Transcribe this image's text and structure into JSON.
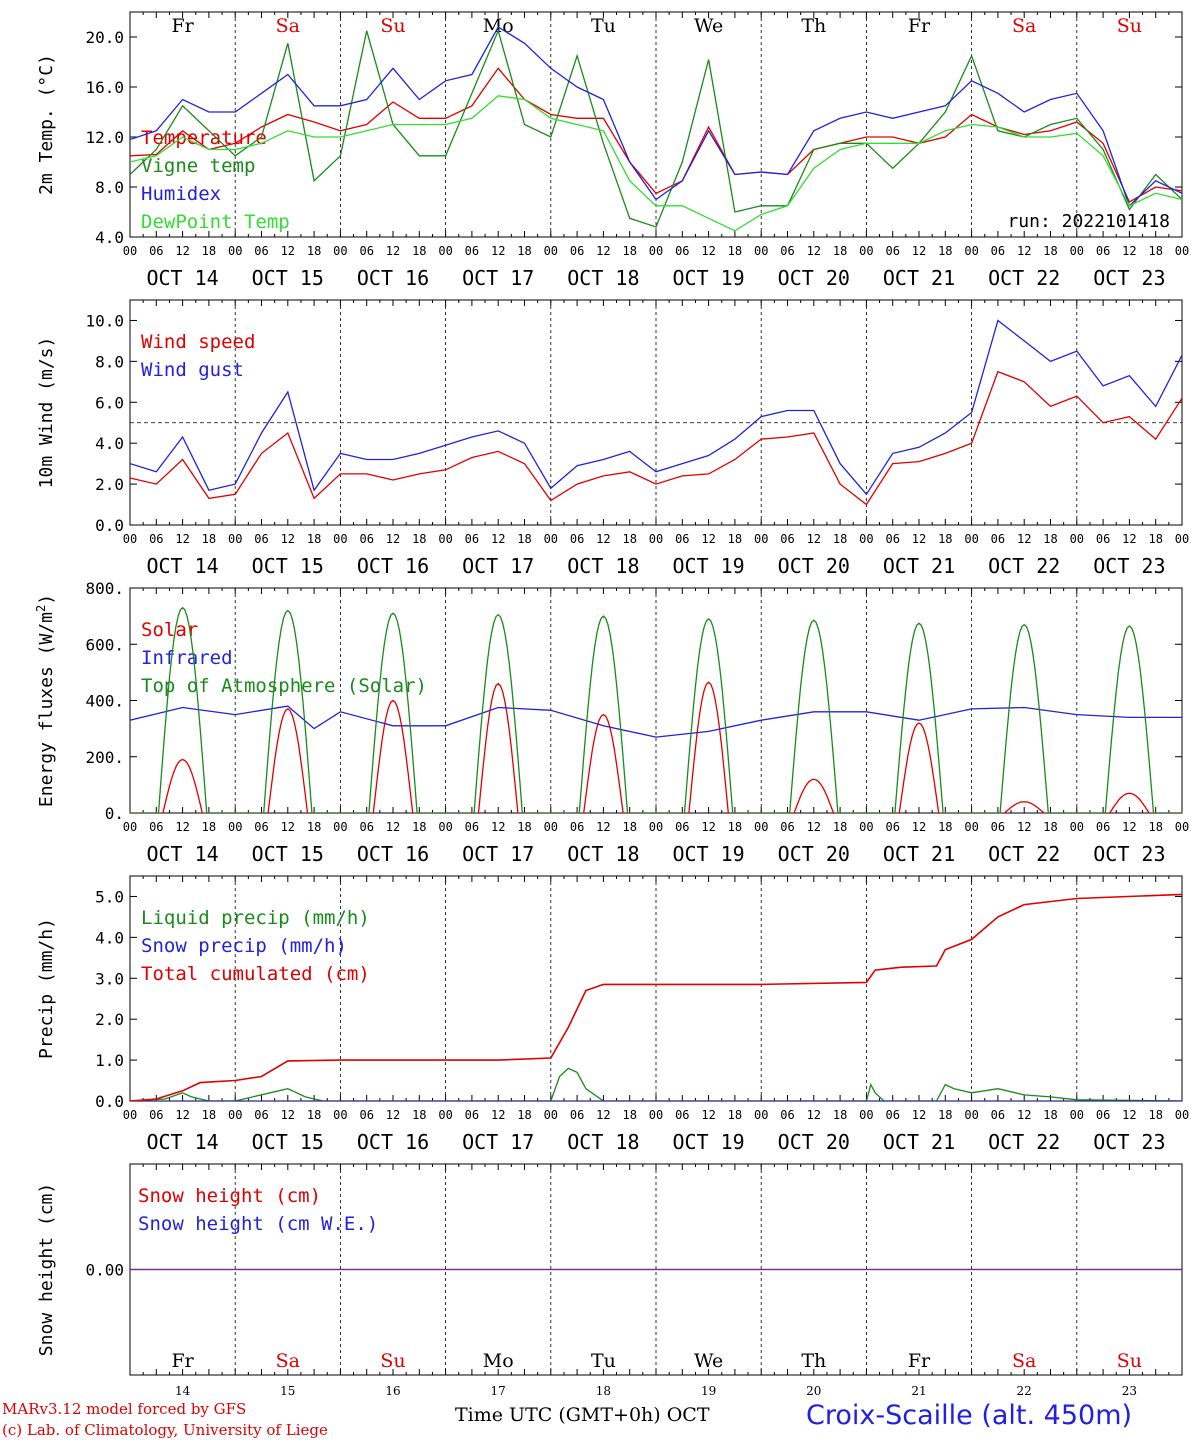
{
  "days": [
    "Fr",
    "Sa",
    "Su",
    "Mo",
    "Tu",
    "We",
    "Th",
    "Fr",
    "Sa",
    "Su"
  ],
  "dates": [
    "OCT 14",
    "OCT 15",
    "OCT 16",
    "OCT 17",
    "OCT 18",
    "OCT 19",
    "OCT 20",
    "OCT 21",
    "OCT 22",
    "OCT 23"
  ],
  "hour_ticks": [
    "00",
    "06",
    "12",
    "18"
  ],
  "bottom_day_numbers": [
    "14",
    "15",
    "16",
    "17",
    "18",
    "19",
    "20",
    "21",
    "22",
    "23"
  ],
  "colors": {
    "red": "#e00000",
    "green": "#1a8a1a",
    "lightgreen": "#33dd33",
    "blue": "#2222dd",
    "weekend": "#e00000",
    "purple": "#7030a0"
  },
  "footer": {
    "model": "MARv3.12 model forced by GFS",
    "lab": "(c) Lab. of Climatology, University of Liege",
    "time_axis": "Time UTC (GMT+0h) OCT",
    "station": "Croix-Scaille (alt. 450m)"
  },
  "chart_data": [
    {
      "type": "line",
      "ylabel": "2m Temp. (°C)",
      "ylim": [
        4.0,
        22.0
      ],
      "yticks": [
        "4.0",
        "8.0",
        "12.0",
        "16.0",
        "20.0"
      ],
      "annotation": "run: 2022101418",
      "x_unit": "hours since 00 UTC Oct 14",
      "series": [
        {
          "name": "Temperature",
          "color": "red",
          "x": [
            0,
            6,
            12,
            18,
            24,
            30,
            36,
            42,
            48,
            54,
            60,
            66,
            72,
            78,
            84,
            90,
            96,
            102,
            108,
            114,
            120,
            126,
            132,
            138,
            144,
            150,
            156,
            162,
            168,
            174,
            180,
            186,
            192,
            198,
            204,
            210,
            216,
            222,
            228,
            234,
            240
          ],
          "y": [
            10.5,
            10.6,
            12.5,
            11.0,
            11.5,
            12.8,
            13.8,
            13.2,
            12.5,
            13.0,
            14.8,
            13.5,
            13.5,
            14.5,
            17.5,
            15.0,
            13.8,
            13.5,
            13.5,
            10.0,
            7.5,
            8.5,
            12.8,
            9.0,
            9.2,
            9.0,
            11.0,
            11.5,
            12.0,
            12.0,
            11.5,
            12.0,
            13.8,
            12.8,
            12.2,
            12.5,
            13.2,
            11.5,
            6.8,
            8.0,
            7.7
          ]
        },
        {
          "name": "Vigne temp",
          "color": "green",
          "x": [
            0,
            6,
            12,
            18,
            24,
            30,
            36,
            42,
            48,
            54,
            60,
            66,
            72,
            78,
            84,
            90,
            96,
            102,
            108,
            114,
            120,
            126,
            132,
            138,
            144,
            150,
            156,
            162,
            168,
            174,
            180,
            186,
            192,
            198,
            204,
            210,
            216,
            222,
            228,
            234,
            240
          ],
          "y": [
            9.0,
            11.0,
            14.5,
            12.5,
            10.5,
            12.0,
            19.5,
            8.5,
            10.5,
            20.5,
            13.0,
            10.5,
            10.5,
            15.5,
            20.5,
            13.0,
            12.0,
            18.5,
            11.5,
            5.5,
            4.8,
            10.0,
            18.2,
            6.0,
            6.5,
            6.5,
            11.0,
            11.5,
            11.5,
            9.5,
            11.5,
            14.0,
            18.5,
            12.5,
            12.0,
            13.0,
            13.5,
            11.0,
            6.2,
            9.0,
            7.0
          ]
        },
        {
          "name": "Humidex",
          "color": "blue",
          "x": [
            0,
            6,
            12,
            18,
            24,
            30,
            36,
            42,
            48,
            54,
            60,
            66,
            72,
            78,
            84,
            90,
            96,
            102,
            108,
            114,
            120,
            126,
            132,
            138,
            144,
            150,
            156,
            162,
            168,
            174,
            180,
            186,
            192,
            198,
            204,
            210,
            216,
            222,
            228,
            234,
            240
          ],
          "y": [
            11.8,
            12.5,
            15.0,
            14.0,
            14.0,
            15.5,
            17.0,
            14.5,
            14.5,
            15.0,
            17.5,
            15.0,
            16.5,
            17.0,
            20.8,
            19.5,
            17.5,
            16.0,
            15.0,
            10.0,
            7.0,
            8.5,
            12.5,
            9.0,
            9.2,
            9.0,
            12.5,
            13.5,
            14.0,
            13.5,
            14.0,
            14.5,
            16.5,
            15.5,
            14.0,
            15.0,
            15.5,
            12.5,
            6.5,
            8.5,
            7.5
          ]
        },
        {
          "name": "DewPoint Temp",
          "color": "lightgreen",
          "x": [
            0,
            6,
            12,
            18,
            24,
            30,
            36,
            42,
            48,
            54,
            60,
            66,
            72,
            78,
            84,
            90,
            96,
            102,
            108,
            114,
            120,
            126,
            132,
            138,
            144,
            150,
            156,
            162,
            168,
            174,
            180,
            186,
            192,
            198,
            204,
            210,
            216,
            222,
            228,
            234,
            240
          ],
          "y": [
            10.0,
            10.5,
            12.0,
            11.0,
            11.0,
            11.5,
            12.5,
            12.0,
            12.0,
            12.5,
            13.0,
            13.0,
            13.0,
            13.5,
            15.3,
            15.0,
            13.5,
            13.0,
            12.5,
            8.5,
            6.5,
            6.5,
            5.5,
            4.5,
            5.8,
            6.5,
            9.5,
            11.0,
            11.5,
            11.5,
            11.5,
            12.5,
            13.0,
            12.8,
            12.0,
            12.0,
            12.3,
            10.5,
            6.5,
            7.5,
            7.0
          ]
        }
      ]
    },
    {
      "type": "line",
      "ylabel": "10m Wind (m/s)",
      "ylim": [
        0.0,
        11.0
      ],
      "yticks": [
        "0.0",
        "2.0",
        "4.0",
        "6.0",
        "8.0",
        "10.0"
      ],
      "reference_line": 5.0,
      "series": [
        {
          "name": "Wind speed",
          "color": "red",
          "x": [
            0,
            6,
            12,
            18,
            24,
            30,
            36,
            42,
            48,
            54,
            60,
            66,
            72,
            78,
            84,
            90,
            96,
            102,
            108,
            114,
            120,
            126,
            132,
            138,
            144,
            150,
            156,
            162,
            168,
            174,
            180,
            186,
            192,
            198,
            204,
            210,
            216,
            222,
            228,
            234,
            240
          ],
          "y": [
            2.3,
            2.0,
            3.2,
            1.3,
            1.5,
            3.5,
            4.5,
            1.3,
            2.5,
            2.5,
            2.2,
            2.5,
            2.7,
            3.3,
            3.6,
            3.0,
            1.2,
            2.0,
            2.4,
            2.6,
            2.0,
            2.4,
            2.5,
            3.2,
            4.2,
            4.3,
            4.5,
            2.0,
            1.0,
            3.0,
            3.1,
            3.5,
            4.0,
            7.5,
            7.0,
            5.8,
            6.3,
            5.0,
            5.3,
            4.2,
            6.2
          ]
        },
        {
          "name": "Wind gust",
          "color": "blue",
          "x": [
            0,
            6,
            12,
            18,
            24,
            30,
            36,
            42,
            48,
            54,
            60,
            66,
            72,
            78,
            84,
            90,
            96,
            102,
            108,
            114,
            120,
            126,
            132,
            138,
            144,
            150,
            156,
            162,
            168,
            174,
            180,
            186,
            192,
            198,
            204,
            210,
            216,
            222,
            228,
            234,
            240
          ],
          "y": [
            3.0,
            2.6,
            4.3,
            1.7,
            2.0,
            4.5,
            6.5,
            1.7,
            3.5,
            3.2,
            3.2,
            3.5,
            3.9,
            4.3,
            4.6,
            4.0,
            1.8,
            2.9,
            3.2,
            3.6,
            2.6,
            3.0,
            3.4,
            4.2,
            5.3,
            5.6,
            5.6,
            3.0,
            1.5,
            3.5,
            3.8,
            4.5,
            5.5,
            10.0,
            9.0,
            8.0,
            8.5,
            6.8,
            7.3,
            5.8,
            8.3
          ]
        }
      ]
    },
    {
      "type": "line",
      "ylabel": "Energy fluxes (W/m2)",
      "ylim": [
        0,
        800
      ],
      "yticks": [
        "0.",
        "200.",
        "400.",
        "600.",
        "800."
      ],
      "series": [
        {
          "name": "Solar",
          "color": "red",
          "daily_peak_hour": 12,
          "daily_peak": [
            190,
            370,
            400,
            460,
            350,
            465,
            120,
            320,
            40,
            70
          ]
        },
        {
          "name": "Infrared",
          "color": "blue",
          "x": [
            0,
            12,
            24,
            36,
            42,
            48,
            60,
            72,
            84,
            96,
            108,
            120,
            132,
            144,
            156,
            168,
            180,
            192,
            204,
            216,
            228,
            240
          ],
          "y": [
            330,
            375,
            350,
            380,
            300,
            360,
            310,
            310,
            375,
            365,
            310,
            270,
            290,
            330,
            360,
            360,
            330,
            370,
            375,
            350,
            340,
            340
          ]
        },
        {
          "name": "Top of Atmosphere (Solar)",
          "color": "green",
          "daily_peak_hour": 12,
          "daily_peak": [
            730,
            720,
            710,
            705,
            700,
            690,
            685,
            675,
            670,
            665
          ]
        }
      ]
    },
    {
      "type": "line",
      "ylabel": "Precip (mm/h)",
      "ylim": [
        0.0,
        5.5
      ],
      "yticks": [
        "0.0",
        "1.0",
        "2.0",
        "3.0",
        "4.0",
        "5.0"
      ],
      "series": [
        {
          "name": "Liquid precip (mm/h)",
          "color": "green",
          "x": [
            0,
            8,
            12,
            14,
            18,
            24,
            36,
            40,
            44,
            48,
            96,
            98,
            100,
            102,
            104,
            108,
            120,
            168,
            169,
            170,
            172,
            184,
            186,
            188,
            192,
            198,
            204,
            210,
            216,
            240
          ],
          "y": [
            0,
            0.05,
            0.2,
            0.1,
            0,
            0,
            0.3,
            0.1,
            0,
            0,
            0,
            0.6,
            0.8,
            0.7,
            0.3,
            0,
            0,
            0,
            0.4,
            0.2,
            0,
            0,
            0.4,
            0.3,
            0.2,
            0.3,
            0.15,
            0.1,
            0.03,
            0
          ]
        },
        {
          "name": "Snow precip (mm/h)",
          "color": "blue",
          "x": [
            0,
            240
          ],
          "y": [
            0,
            0
          ]
        },
        {
          "name": "Total cumulated (cm)",
          "color": "red",
          "x": [
            0,
            6,
            12,
            16,
            24,
            30,
            36,
            48,
            72,
            84,
            96,
            100,
            104,
            108,
            120,
            144,
            168,
            170,
            176,
            184,
            186,
            192,
            198,
            204,
            216,
            240
          ],
          "y": [
            0,
            0.05,
            0.25,
            0.45,
            0.5,
            0.6,
            0.98,
            1.0,
            1.0,
            1.0,
            1.05,
            1.8,
            2.7,
            2.85,
            2.85,
            2.85,
            2.9,
            3.2,
            3.27,
            3.3,
            3.7,
            3.95,
            4.5,
            4.8,
            4.95,
            5.05
          ]
        }
      ]
    },
    {
      "type": "line",
      "ylabel": "Snow height (cm)",
      "yticks": [
        "0.00"
      ],
      "series": [
        {
          "name": "Snow height (cm)",
          "color": "red",
          "x": [
            0,
            240
          ],
          "y": [
            0,
            0
          ]
        },
        {
          "name": "Snow height (cm W.E.)",
          "color": "blue",
          "x": [
            0,
            240
          ],
          "y": [
            0,
            0
          ]
        }
      ]
    }
  ]
}
